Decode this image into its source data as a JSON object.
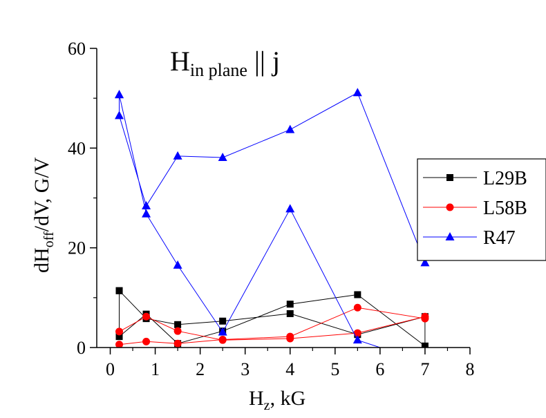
{
  "chart_data": {
    "type": "line",
    "title": "H",
    "title_sub": "in plane",
    "title_tail": " || j",
    "xlabel": "H",
    "xlabel_sub": "z",
    "xlabel_tail": ", kG",
    "ylabel": "dH",
    "ylabel_sub": "off",
    "ylabel_tail": "/dV, G/V",
    "xlim": [
      -0.3,
      8
    ],
    "ylim": [
      0,
      60
    ],
    "xticks": [
      "0",
      "1",
      "2",
      "3",
      "4",
      "5",
      "6",
      "7",
      "8"
    ],
    "xtick_values": [
      0,
      1,
      2,
      3,
      4,
      5,
      6,
      7,
      8
    ],
    "yticks": [
      "0",
      "20",
      "40",
      "60"
    ],
    "ytick_values": [
      0,
      20,
      40,
      60
    ],
    "legend_position": "right",
    "grid": false,
    "series": [
      {
        "name": "L29B",
        "color": "#000000",
        "marker": "square",
        "points": [
          [
            0.2,
            11.4
          ],
          [
            0.2,
            2.2
          ],
          [
            0.8,
            6.7
          ],
          [
            1.5,
            0.8
          ],
          [
            2.5,
            3.3
          ],
          [
            4.0,
            8.7
          ],
          [
            5.5,
            10.6
          ],
          [
            7.0,
            0.3
          ],
          [
            7.0,
            6.2
          ],
          [
            5.5,
            2.6
          ],
          [
            4.0,
            6.8
          ],
          [
            2.5,
            5.3
          ],
          [
            1.5,
            4.6
          ],
          [
            0.8,
            5.8
          ],
          [
            0.2,
            11.4
          ]
        ]
      },
      {
        "name": "L58B",
        "color": "#ff0000",
        "marker": "circle",
        "points": [
          [
            0.2,
            3.2
          ],
          [
            0.8,
            6.2
          ],
          [
            1.5,
            3.3
          ],
          [
            2.5,
            1.5
          ],
          [
            4.0,
            1.8
          ],
          [
            5.5,
            2.9
          ],
          [
            7.0,
            6.2
          ],
          [
            7.0,
            5.8
          ],
          [
            5.5,
            8.0
          ],
          [
            4.0,
            2.2
          ],
          [
            2.5,
            1.6
          ],
          [
            1.5,
            0.8
          ],
          [
            0.8,
            1.2
          ],
          [
            0.2,
            0.6
          ]
        ]
      },
      {
        "name": "R47",
        "color": "#0000ff",
        "marker": "triangle",
        "points": [
          [
            0.2,
            50.7
          ],
          [
            0.8,
            26.8
          ],
          [
            1.5,
            16.5
          ],
          [
            2.5,
            3.1
          ],
          [
            4.0,
            27.8
          ],
          [
            5.5,
            1.5
          ],
          [
            6.0,
            0.0
          ],
          null,
          [
            7.0,
            17.0
          ],
          [
            5.5,
            51.1
          ],
          [
            4.0,
            43.7
          ],
          [
            2.5,
            38.1
          ],
          [
            1.5,
            38.4
          ],
          [
            0.8,
            28.4
          ],
          [
            0.2,
            46.5
          ],
          [
            0.2,
            50.7
          ]
        ]
      }
    ]
  }
}
